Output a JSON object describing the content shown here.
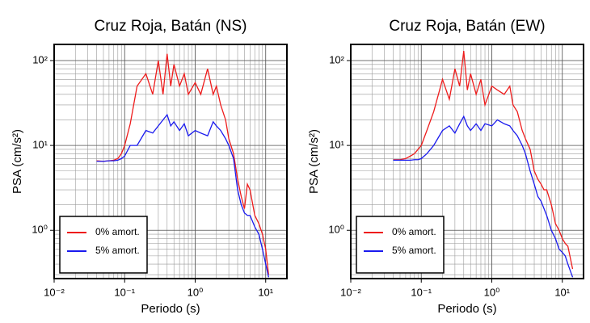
{
  "chart_data": [
    {
      "type": "line",
      "title": "Cruz Roja, Batán (NS)",
      "x_label": "Periodo (s)",
      "y_label": "PSA (cm/s²)",
      "log_x": true,
      "log_y": true,
      "grid": true,
      "legend": "lower left",
      "xlim": [
        0.01,
        20
      ],
      "ylim": [
        0.27,
        155
      ],
      "xticks": [
        {
          "value": 0.01,
          "label": "10⁻²"
        },
        {
          "value": 0.1,
          "label": "10⁻¹"
        },
        {
          "value": 1,
          "label": "10⁰"
        },
        {
          "value": 10,
          "label": "10¹"
        }
      ],
      "yticks": [
        {
          "value": 1,
          "label": "10⁰"
        },
        {
          "value": 10,
          "label": "10¹"
        },
        {
          "value": 100,
          "label": "10²"
        }
      ],
      "x": [
        0.04,
        0.05,
        0.06,
        0.07,
        0.08,
        0.09,
        0.1,
        0.12,
        0.15,
        0.2,
        0.25,
        0.3,
        0.35,
        0.4,
        0.45,
        0.5,
        0.6,
        0.7,
        0.8,
        1.0,
        1.2,
        1.5,
        1.8,
        2,
        2.3,
        2.7,
        3,
        3.5,
        4,
        4.5,
        5,
        5.5,
        6,
        7,
        8,
        9,
        10,
        11
      ],
      "series": [
        {
          "name": "0% amort.",
          "color": "#ee1c1c",
          "values": [
            6.6,
            6.5,
            6.6,
            6.7,
            7,
            8,
            10,
            18,
            50,
            70,
            40,
            100,
            40,
            120,
            50,
            90,
            50,
            70,
            40,
            55,
            40,
            80,
            40,
            50,
            30,
            20,
            12,
            8,
            4,
            2.5,
            1.8,
            3.5,
            3,
            1.5,
            1.2,
            0.9,
            0.6,
            0.3
          ]
        },
        {
          "name": "5% amort.",
          "color": "#1a1aee",
          "values": [
            6.5,
            6.5,
            6.6,
            6.6,
            6.7,
            7,
            7.5,
            10,
            10,
            15,
            14,
            17,
            20,
            23,
            17,
            19,
            15,
            18,
            13,
            15,
            14,
            13,
            19,
            17,
            15,
            12,
            10,
            7,
            3,
            2,
            1.6,
            1.5,
            1.5,
            1.1,
            0.9,
            0.6,
            0.4,
            0.28
          ]
        }
      ]
    },
    {
      "type": "line",
      "title": "Cruz Roja, Batán (EW)",
      "x_label": "Periodo (s)",
      "y_label": "PSA (cm/s²)",
      "log_x": true,
      "log_y": true,
      "grid": true,
      "legend": "lower left",
      "xlim": [
        0.01,
        20
      ],
      "ylim": [
        0.27,
        155
      ],
      "xticks": [
        {
          "value": 0.01,
          "label": "10⁻²"
        },
        {
          "value": 0.1,
          "label": "10⁻¹"
        },
        {
          "value": 1,
          "label": "10⁰"
        },
        {
          "value": 10,
          "label": "10¹"
        }
      ],
      "yticks": [
        {
          "value": 1,
          "label": "10⁰"
        },
        {
          "value": 10,
          "label": "10¹"
        },
        {
          "value": 100,
          "label": "10²"
        }
      ],
      "x": [
        0.04,
        0.05,
        0.06,
        0.07,
        0.08,
        0.09,
        0.1,
        0.12,
        0.15,
        0.2,
        0.25,
        0.3,
        0.35,
        0.4,
        0.45,
        0.5,
        0.6,
        0.7,
        0.8,
        1.0,
        1.2,
        1.5,
        1.8,
        2,
        2.3,
        2.7,
        3,
        3.5,
        4,
        4.5,
        5,
        5.5,
        6,
        7,
        8,
        9,
        10,
        11,
        12,
        14
      ],
      "series": [
        {
          "name": "0% amort.",
          "color": "#ee1c1c",
          "values": [
            6.8,
            6.8,
            7,
            7.5,
            8,
            9,
            10,
            15,
            25,
            60,
            35,
            80,
            50,
            130,
            45,
            70,
            40,
            60,
            30,
            50,
            45,
            40,
            50,
            30,
            25,
            15,
            12,
            9,
            5,
            4,
            3.5,
            3,
            3,
            2,
            1.2,
            1,
            0.8,
            0.7,
            0.65,
            0.35
          ]
        },
        {
          "name": "5% amort.",
          "color": "#1a1aee",
          "values": [
            6.7,
            6.7,
            6.7,
            6.7,
            6.8,
            6.8,
            7,
            8,
            10,
            15,
            17,
            14,
            18,
            22,
            17,
            15,
            18,
            15,
            18,
            17,
            20,
            18,
            17,
            15,
            13,
            10,
            8,
            5,
            3.5,
            2.5,
            2.2,
            1.8,
            1.5,
            1,
            0.8,
            0.6,
            0.55,
            0.5,
            0.4,
            0.28
          ]
        }
      ]
    }
  ]
}
